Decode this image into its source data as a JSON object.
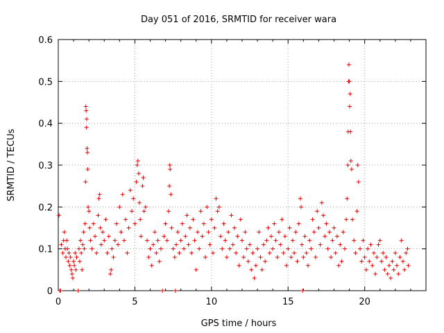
{
  "chart_data": {
    "type": "scatter",
    "title": "Day 051 of 2016, SRMTID for receiver wara",
    "xlabel": "GPS time / hours",
    "ylabel": "SRMTID / TECUs",
    "xlim": [
      0,
      24
    ],
    "ylim": [
      0,
      0.6
    ],
    "x_ticks": [
      0,
      5,
      10,
      15,
      20
    ],
    "x_tick_labels": [
      "0",
      "5",
      "10",
      "15",
      "20"
    ],
    "y_ticks": [
      0,
      0.1,
      0.2,
      0.3,
      0.4,
      0.5,
      0.6
    ],
    "y_tick_labels": [
      "0",
      "0.1",
      "0.2",
      "0.3",
      "0.4",
      "0.5",
      "0.6"
    ],
    "grid": true,
    "marker": "plus",
    "color": "#e00000",
    "series": [
      {
        "name": "SRMTID",
        "points": [
          [
            0.05,
            0.18
          ],
          [
            0.1,
            0.0
          ],
          [
            0.15,
            0.0
          ],
          [
            0.2,
            0.11
          ],
          [
            0.3,
            0.09
          ],
          [
            0.35,
            0.12
          ],
          [
            0.4,
            0.14
          ],
          [
            0.45,
            0.1
          ],
          [
            0.5,
            0.08
          ],
          [
            0.55,
            0.12
          ],
          [
            0.6,
            0.1
          ],
          [
            0.65,
            0.07
          ],
          [
            0.7,
            0.09
          ],
          [
            0.75,
            0.06
          ],
          [
            0.8,
            0.08
          ],
          [
            0.85,
            0.05
          ],
          [
            0.9,
            0.04
          ],
          [
            0.95,
            0.03
          ],
          [
            1.0,
            0.07
          ],
          [
            1.05,
            0.06
          ],
          [
            1.1,
            0.09
          ],
          [
            1.15,
            0.05
          ],
          [
            1.2,
            0.08
          ],
          [
            1.3,
            0.0
          ],
          [
            1.35,
            0.1
          ],
          [
            1.4,
            0.07
          ],
          [
            1.45,
            0.12
          ],
          [
            1.5,
            0.09
          ],
          [
            1.55,
            0.05
          ],
          [
            1.6,
            0.11
          ],
          [
            1.65,
            0.14
          ],
          [
            1.7,
            0.1
          ],
          [
            1.75,
            0.16
          ],
          [
            1.78,
            0.26
          ],
          [
            1.8,
            0.44
          ],
          [
            1.82,
            0.43
          ],
          [
            1.84,
            0.39
          ],
          [
            1.86,
            0.41
          ],
          [
            1.88,
            0.34
          ],
          [
            1.9,
            0.33
          ],
          [
            1.92,
            0.29
          ],
          [
            1.95,
            0.2
          ],
          [
            2.0,
            0.19
          ],
          [
            2.05,
            0.15
          ],
          [
            2.1,
            0.12
          ],
          [
            2.2,
            0.1
          ],
          [
            2.3,
            0.16
          ],
          [
            2.4,
            0.13
          ],
          [
            2.5,
            0.09
          ],
          [
            2.6,
            0.18
          ],
          [
            2.65,
            0.22
          ],
          [
            2.7,
            0.23
          ],
          [
            2.75,
            0.15
          ],
          [
            2.8,
            0.11
          ],
          [
            2.9,
            0.14
          ],
          [
            3.0,
            0.12
          ],
          [
            3.1,
            0.17
          ],
          [
            3.2,
            0.09
          ],
          [
            3.3,
            0.13
          ],
          [
            3.4,
            0.04
          ],
          [
            3.45,
            0.05
          ],
          [
            3.5,
            0.1
          ],
          [
            3.6,
            0.08
          ],
          [
            3.7,
            0.12
          ],
          [
            3.8,
            0.16
          ],
          [
            3.9,
            0.11
          ],
          [
            4.0,
            0.2
          ],
          [
            4.1,
            0.14
          ],
          [
            4.2,
            0.23
          ],
          [
            4.3,
            0.12
          ],
          [
            4.4,
            0.17
          ],
          [
            4.5,
            0.09
          ],
          [
            4.6,
            0.15
          ],
          [
            4.7,
            0.24
          ],
          [
            4.8,
            0.19
          ],
          [
            4.9,
            0.22
          ],
          [
            5.0,
            0.16
          ],
          [
            5.1,
            0.26
          ],
          [
            5.15,
            0.3
          ],
          [
            5.2,
            0.31
          ],
          [
            5.25,
            0.28
          ],
          [
            5.3,
            0.21
          ],
          [
            5.35,
            0.17
          ],
          [
            5.4,
            0.13
          ],
          [
            5.5,
            0.25
          ],
          [
            5.55,
            0.27
          ],
          [
            5.6,
            0.19
          ],
          [
            5.7,
            0.2
          ],
          [
            5.8,
            0.12
          ],
          [
            5.9,
            0.08
          ],
          [
            6.0,
            0.1
          ],
          [
            6.1,
            0.06
          ],
          [
            6.2,
            0.11
          ],
          [
            6.3,
            0.14
          ],
          [
            6.4,
            0.09
          ],
          [
            6.5,
            0.12
          ],
          [
            6.6,
            0.07
          ],
          [
            6.7,
            0.1
          ],
          [
            6.8,
            0.0
          ],
          [
            6.9,
            0.13
          ],
          [
            7.0,
            0.16
          ],
          [
            7.1,
            0.12
          ],
          [
            7.2,
            0.19
          ],
          [
            7.25,
            0.25
          ],
          [
            7.28,
            0.3
          ],
          [
            7.3,
            0.29
          ],
          [
            7.35,
            0.23
          ],
          [
            7.4,
            0.15
          ],
          [
            7.5,
            0.1
          ],
          [
            7.6,
            0.08
          ],
          [
            7.65,
            0.0
          ],
          [
            7.7,
            0.11
          ],
          [
            7.8,
            0.14
          ],
          [
            7.9,
            0.09
          ],
          [
            8.0,
            0.12
          ],
          [
            8.1,
            0.16
          ],
          [
            8.2,
            0.1
          ],
          [
            8.3,
            0.13
          ],
          [
            8.4,
            0.18
          ],
          [
            8.5,
            0.11
          ],
          [
            8.6,
            0.15
          ],
          [
            8.7,
            0.09
          ],
          [
            8.8,
            0.17
          ],
          [
            8.9,
            0.12
          ],
          [
            9.0,
            0.05
          ],
          [
            9.1,
            0.14
          ],
          [
            9.2,
            0.1
          ],
          [
            9.3,
            0.19
          ],
          [
            9.4,
            0.13
          ],
          [
            9.5,
            0.16
          ],
          [
            9.6,
            0.08
          ],
          [
            9.7,
            0.2
          ],
          [
            9.8,
            0.14
          ],
          [
            9.9,
            0.11
          ],
          [
            10.0,
            0.17
          ],
          [
            10.1,
            0.09
          ],
          [
            10.2,
            0.15
          ],
          [
            10.3,
            0.22
          ],
          [
            10.4,
            0.19
          ],
          [
            10.5,
            0.2
          ],
          [
            10.6,
            0.13
          ],
          [
            10.7,
            0.1
          ],
          [
            10.8,
            0.16
          ],
          [
            10.9,
            0.12
          ],
          [
            11.0,
            0.08
          ],
          [
            11.1,
            0.14
          ],
          [
            11.2,
            0.1
          ],
          [
            11.3,
            0.18
          ],
          [
            11.4,
            0.11
          ],
          [
            11.5,
            0.15
          ],
          [
            11.6,
            0.09
          ],
          [
            11.7,
            0.13
          ],
          [
            11.8,
            0.06
          ],
          [
            11.9,
            0.17
          ],
          [
            12.0,
            0.12
          ],
          [
            12.1,
            0.08
          ],
          [
            12.2,
            0.14
          ],
          [
            12.3,
            0.1
          ],
          [
            12.4,
            0.07
          ],
          [
            12.5,
            0.11
          ],
          [
            12.6,
            0.05
          ],
          [
            12.7,
            0.09
          ],
          [
            12.8,
            0.03
          ],
          [
            12.9,
            0.06
          ],
          [
            13.0,
            0.1
          ],
          [
            13.1,
            0.14
          ],
          [
            13.2,
            0.08
          ],
          [
            13.3,
            0.05
          ],
          [
            13.4,
            0.11
          ],
          [
            13.5,
            0.07
          ],
          [
            13.6,
            0.12
          ],
          [
            13.7,
            0.15
          ],
          [
            13.8,
            0.09
          ],
          [
            13.9,
            0.13
          ],
          [
            14.0,
            0.1
          ],
          [
            14.1,
            0.16
          ],
          [
            14.2,
            0.12
          ],
          [
            14.3,
            0.08
          ],
          [
            14.4,
            0.14
          ],
          [
            14.5,
            0.11
          ],
          [
            14.6,
            0.17
          ],
          [
            14.7,
            0.09
          ],
          [
            14.8,
            0.13
          ],
          [
            14.9,
            0.06
          ],
          [
            15.0,
            0.1
          ],
          [
            15.1,
            0.15
          ],
          [
            15.2,
            0.08
          ],
          [
            15.3,
            0.12
          ],
          [
            15.4,
            0.09
          ],
          [
            15.5,
            0.14
          ],
          [
            15.6,
            0.07
          ],
          [
            15.7,
            0.16
          ],
          [
            15.8,
            0.22
          ],
          [
            15.85,
            0.2
          ],
          [
            15.9,
            0.11
          ],
          [
            15.95,
            0.0
          ],
          [
            16.0,
            0.08
          ],
          [
            16.1,
            0.13
          ],
          [
            16.2,
            0.09
          ],
          [
            16.3,
            0.06
          ],
          [
            16.4,
            0.12
          ],
          [
            16.5,
            0.1
          ],
          [
            16.6,
            0.17
          ],
          [
            16.7,
            0.14
          ],
          [
            16.8,
            0.08
          ],
          [
            16.9,
            0.19
          ],
          [
            17.0,
            0.15
          ],
          [
            17.1,
            0.11
          ],
          [
            17.2,
            0.21
          ],
          [
            17.3,
            0.18
          ],
          [
            17.4,
            0.13
          ],
          [
            17.5,
            0.16
          ],
          [
            17.6,
            0.1
          ],
          [
            17.7,
            0.14
          ],
          [
            17.8,
            0.08
          ],
          [
            17.9,
            0.12
          ],
          [
            18.0,
            0.15
          ],
          [
            18.1,
            0.09
          ],
          [
            18.2,
            0.13
          ],
          [
            18.3,
            0.06
          ],
          [
            18.4,
            0.11
          ],
          [
            18.5,
            0.07
          ],
          [
            18.6,
            0.14
          ],
          [
            18.7,
            0.1
          ],
          [
            18.8,
            0.17
          ],
          [
            18.85,
            0.22
          ],
          [
            18.9,
            0.3
          ],
          [
            18.92,
            0.38
          ],
          [
            18.95,
            0.5
          ],
          [
            18.97,
            0.54
          ],
          [
            19.0,
            0.5
          ],
          [
            19.02,
            0.44
          ],
          [
            19.05,
            0.47
          ],
          [
            19.08,
            0.38
          ],
          [
            19.1,
            0.31
          ],
          [
            19.15,
            0.29
          ],
          [
            19.2,
            0.17
          ],
          [
            19.3,
            0.12
          ],
          [
            19.4,
            0.09
          ],
          [
            19.5,
            0.19
          ],
          [
            19.55,
            0.3
          ],
          [
            19.6,
            0.26
          ],
          [
            19.7,
            0.1
          ],
          [
            19.8,
            0.07
          ],
          [
            19.9,
            0.12
          ],
          [
            20.0,
            0.08
          ],
          [
            20.1,
            0.05
          ],
          [
            20.2,
            0.1
          ],
          [
            20.3,
            0.07
          ],
          [
            20.4,
            0.11
          ],
          [
            20.5,
            0.06
          ],
          [
            20.6,
            0.09
          ],
          [
            20.7,
            0.04
          ],
          [
            20.8,
            0.08
          ],
          [
            20.9,
            0.11
          ],
          [
            21.0,
            0.12
          ],
          [
            21.1,
            0.07
          ],
          [
            21.2,
            0.09
          ],
          [
            21.3,
            0.05
          ],
          [
            21.4,
            0.08
          ],
          [
            21.5,
            0.04
          ],
          [
            21.6,
            0.06
          ],
          [
            21.7,
            0.03
          ],
          [
            21.8,
            0.07
          ],
          [
            21.9,
            0.05
          ],
          [
            22.0,
            0.09
          ],
          [
            22.1,
            0.06
          ],
          [
            22.2,
            0.04
          ],
          [
            22.3,
            0.08
          ],
          [
            22.4,
            0.12
          ],
          [
            22.5,
            0.07
          ],
          [
            22.6,
            0.05
          ],
          [
            22.7,
            0.09
          ],
          [
            22.8,
            0.1
          ],
          [
            22.85,
            0.06
          ]
        ]
      }
    ]
  }
}
